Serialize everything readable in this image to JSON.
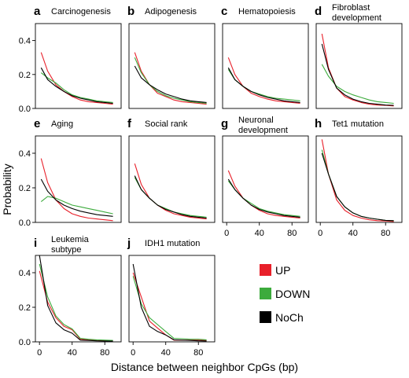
{
  "figure": {
    "xlabel": "Distance between neighbor CpGs (bp)",
    "ylabel": "Probability"
  },
  "legend": [
    {
      "label": "UP",
      "color": "#e8202a"
    },
    {
      "label": "DOWN",
      "color": "#3cab3c"
    },
    {
      "label": "NoCh",
      "color": "#000000"
    }
  ],
  "chart_data": [
    {
      "type": "line",
      "letter": "a",
      "title": [
        "Carcinogenesis"
      ],
      "x": [
        2,
        10,
        20,
        30,
        40,
        50,
        60,
        70,
        80,
        90
      ],
      "ylim": [
        0,
        0.5
      ],
      "xlim": [
        -5,
        100
      ],
      "yticks": [
        "0.0",
        "0.2",
        "0.4"
      ],
      "xticks": [],
      "series": [
        {
          "name": "UP",
          "color": "#e8202a",
          "values": [
            0.33,
            0.22,
            0.14,
            0.1,
            0.07,
            0.05,
            0.04,
            0.035,
            0.03,
            0.025
          ]
        },
        {
          "name": "DOWN",
          "color": "#3cab3c",
          "values": [
            0.21,
            0.18,
            0.15,
            0.11,
            0.08,
            0.065,
            0.055,
            0.045,
            0.04,
            0.035
          ]
        },
        {
          "name": "NoCh",
          "color": "#000000",
          "values": [
            0.24,
            0.17,
            0.13,
            0.1,
            0.075,
            0.06,
            0.05,
            0.04,
            0.035,
            0.03
          ]
        }
      ]
    },
    {
      "type": "line",
      "letter": "b",
      "title": [
        "Adipogenesis"
      ],
      "x": [
        2,
        10,
        20,
        30,
        40,
        50,
        60,
        70,
        80,
        90
      ],
      "ylim": [
        0,
        0.5
      ],
      "xlim": [
        -5,
        100
      ],
      "yticks": [],
      "xticks": [],
      "series": [
        {
          "name": "UP",
          "color": "#e8202a",
          "values": [
            0.33,
            0.22,
            0.14,
            0.09,
            0.07,
            0.05,
            0.04,
            0.035,
            0.03,
            0.025
          ]
        },
        {
          "name": "DOWN",
          "color": "#3cab3c",
          "values": [
            0.3,
            0.21,
            0.14,
            0.1,
            0.075,
            0.06,
            0.05,
            0.04,
            0.035,
            0.03
          ]
        },
        {
          "name": "NoCh",
          "color": "#000000",
          "values": [
            0.25,
            0.18,
            0.14,
            0.11,
            0.085,
            0.07,
            0.055,
            0.045,
            0.04,
            0.035
          ]
        }
      ]
    },
    {
      "type": "line",
      "letter": "c",
      "title": [
        "Hematopoiesis"
      ],
      "x": [
        2,
        10,
        20,
        30,
        40,
        50,
        60,
        70,
        80,
        90
      ],
      "ylim": [
        0,
        0.5
      ],
      "xlim": [
        -5,
        100
      ],
      "yticks": [],
      "xticks": [],
      "series": [
        {
          "name": "UP",
          "color": "#e8202a",
          "values": [
            0.3,
            0.2,
            0.13,
            0.09,
            0.07,
            0.055,
            0.045,
            0.04,
            0.035,
            0.03
          ]
        },
        {
          "name": "DOWN",
          "color": "#3cab3c",
          "values": [
            0.23,
            0.17,
            0.13,
            0.1,
            0.085,
            0.07,
            0.06,
            0.055,
            0.05,
            0.045
          ]
        },
        {
          "name": "NoCh",
          "color": "#000000",
          "values": [
            0.24,
            0.17,
            0.13,
            0.1,
            0.08,
            0.065,
            0.055,
            0.045,
            0.04,
            0.035
          ]
        }
      ]
    },
    {
      "type": "line",
      "letter": "d",
      "title": [
        "Fibroblast",
        "development"
      ],
      "x": [
        2,
        10,
        20,
        30,
        40,
        50,
        60,
        70,
        80,
        90
      ],
      "ylim": [
        0,
        0.5
      ],
      "xlim": [
        -5,
        100
      ],
      "yticks": [],
      "xticks": [],
      "series": [
        {
          "name": "UP",
          "color": "#e8202a",
          "values": [
            0.44,
            0.24,
            0.12,
            0.07,
            0.05,
            0.035,
            0.025,
            0.02,
            0.018,
            0.015
          ]
        },
        {
          "name": "DOWN",
          "color": "#3cab3c",
          "values": [
            0.26,
            0.19,
            0.13,
            0.1,
            0.08,
            0.065,
            0.05,
            0.04,
            0.035,
            0.03
          ]
        },
        {
          "name": "NoCh",
          "color": "#000000",
          "values": [
            0.38,
            0.23,
            0.12,
            0.08,
            0.055,
            0.04,
            0.03,
            0.025,
            0.02,
            0.018
          ]
        }
      ]
    },
    {
      "type": "line",
      "letter": "e",
      "title": [
        "Aging"
      ],
      "x": [
        2,
        10,
        20,
        30,
        40,
        50,
        60,
        70,
        80,
        90
      ],
      "ylim": [
        0,
        0.5
      ],
      "xlim": [
        -5,
        100
      ],
      "yticks": [
        "0.0",
        "0.2",
        "0.4"
      ],
      "xticks": [],
      "series": [
        {
          "name": "UP",
          "color": "#e8202a",
          "values": [
            0.37,
            0.23,
            0.13,
            0.08,
            0.05,
            0.035,
            0.025,
            0.02,
            0.015,
            0.01
          ]
        },
        {
          "name": "DOWN",
          "color": "#3cab3c",
          "values": [
            0.12,
            0.15,
            0.14,
            0.12,
            0.1,
            0.09,
            0.08,
            0.07,
            0.06,
            0.05
          ]
        },
        {
          "name": "NoCh",
          "color": "#000000",
          "values": [
            0.25,
            0.18,
            0.13,
            0.1,
            0.08,
            0.065,
            0.055,
            0.045,
            0.04,
            0.035
          ]
        }
      ]
    },
    {
      "type": "line",
      "letter": "f",
      "title": [
        "Social rank"
      ],
      "x": [
        2,
        10,
        20,
        30,
        40,
        50,
        60,
        70,
        80,
        90
      ],
      "ylim": [
        0,
        0.5
      ],
      "xlim": [
        -5,
        100
      ],
      "yticks": [],
      "xticks": [],
      "series": [
        {
          "name": "UP",
          "color": "#e8202a",
          "values": [
            0.34,
            0.22,
            0.14,
            0.1,
            0.07,
            0.05,
            0.04,
            0.03,
            0.025,
            0.02
          ]
        },
        {
          "name": "DOWN",
          "color": "#3cab3c",
          "values": [
            0.26,
            0.19,
            0.14,
            0.1,
            0.08,
            0.06,
            0.05,
            0.04,
            0.035,
            0.03
          ]
        },
        {
          "name": "NoCh",
          "color": "#000000",
          "values": [
            0.27,
            0.19,
            0.14,
            0.1,
            0.075,
            0.06,
            0.045,
            0.035,
            0.03,
            0.025
          ]
        }
      ]
    },
    {
      "type": "line",
      "letter": "g",
      "title": [
        "Neuronal",
        "development"
      ],
      "x": [
        2,
        10,
        20,
        30,
        40,
        50,
        60,
        70,
        80,
        90
      ],
      "ylim": [
        0,
        0.5
      ],
      "xlim": [
        -5,
        100
      ],
      "yticks": [],
      "xticks": [
        "0",
        "40",
        "80"
      ],
      "series": [
        {
          "name": "UP",
          "color": "#e8202a",
          "values": [
            0.3,
            0.21,
            0.14,
            0.1,
            0.07,
            0.05,
            0.04,
            0.035,
            0.03,
            0.025
          ]
        },
        {
          "name": "DOWN",
          "color": "#3cab3c",
          "values": [
            0.24,
            0.19,
            0.14,
            0.11,
            0.08,
            0.065,
            0.055,
            0.045,
            0.04,
            0.035
          ]
        },
        {
          "name": "NoCh",
          "color": "#000000",
          "values": [
            0.25,
            0.19,
            0.14,
            0.1,
            0.075,
            0.06,
            0.05,
            0.04,
            0.035,
            0.03
          ]
        }
      ]
    },
    {
      "type": "line",
      "letter": "h",
      "title": [
        "Tet1 mutation"
      ],
      "x": [
        2,
        10,
        20,
        30,
        40,
        50,
        60,
        70,
        80,
        90
      ],
      "ylim": [
        0,
        0.5
      ],
      "xlim": [
        -5,
        100
      ],
      "yticks": [],
      "xticks": [
        "0",
        "40",
        "80"
      ],
      "series": [
        {
          "name": "UP",
          "color": "#e8202a",
          "values": [
            0.48,
            0.28,
            0.13,
            0.07,
            0.04,
            0.025,
            0.015,
            0.01,
            0.008,
            0.005
          ]
        },
        {
          "name": "DOWN",
          "color": "#3cab3c",
          "values": [
            0.42,
            0.28,
            0.15,
            0.09,
            0.055,
            0.035,
            0.025,
            0.018,
            0.012,
            0.01
          ]
        },
        {
          "name": "NoCh",
          "color": "#000000",
          "values": [
            0.4,
            0.28,
            0.15,
            0.09,
            0.055,
            0.035,
            0.025,
            0.018,
            0.012,
            0.01
          ]
        }
      ]
    },
    {
      "type": "line",
      "letter": "i",
      "title": [
        "Leukemia",
        "subtype"
      ],
      "x": [
        0,
        10,
        20,
        30,
        40,
        50,
        60,
        70,
        80,
        90
      ],
      "ylim": [
        0,
        0.5
      ],
      "xlim": [
        -5,
        100
      ],
      "yticks": [
        "0.0",
        "0.2",
        "0.4"
      ],
      "xticks": [
        "0",
        "40",
        "80"
      ],
      "series": [
        {
          "name": "UP",
          "color": "#e8202a",
          "values": [
            0.41,
            0.23,
            0.14,
            0.09,
            0.07,
            0.015,
            0.012,
            0.01,
            0.008,
            0.006
          ]
        },
        {
          "name": "DOWN",
          "color": "#3cab3c",
          "values": [
            0.45,
            0.26,
            0.15,
            0.1,
            0.075,
            0.02,
            0.015,
            0.012,
            0.01,
            0.008
          ]
        },
        {
          "name": "NoCh",
          "color": "#000000",
          "values": [
            0.5,
            0.21,
            0.11,
            0.07,
            0.05,
            0.01,
            0.008,
            0.006,
            0.005,
            0.004
          ]
        }
      ]
    },
    {
      "type": "line",
      "letter": "j",
      "title": [
        "IDH1 mutation"
      ],
      "x": [
        0,
        10,
        20,
        30,
        40,
        50,
        60,
        70,
        80,
        90
      ],
      "ylim": [
        0,
        0.5
      ],
      "xlim": [
        -5,
        100
      ],
      "yticks": [],
      "xticks": [
        "0",
        "40",
        "80"
      ],
      "series": [
        {
          "name": "UP",
          "color": "#e8202a",
          "values": [
            0.4,
            0.26,
            0.12,
            0.08,
            0.04,
            0.01,
            0.01,
            0.01,
            0.01,
            0.008
          ]
        },
        {
          "name": "DOWN",
          "color": "#3cab3c",
          "values": [
            0.38,
            0.22,
            0.14,
            0.1,
            0.06,
            0.02,
            0.018,
            0.015,
            0.015,
            0.012
          ]
        },
        {
          "name": "NoCh",
          "color": "#000000",
          "values": [
            0.45,
            0.2,
            0.09,
            0.06,
            0.04,
            0.012,
            0.01,
            0.008,
            0.006,
            0.005
          ]
        }
      ]
    }
  ]
}
